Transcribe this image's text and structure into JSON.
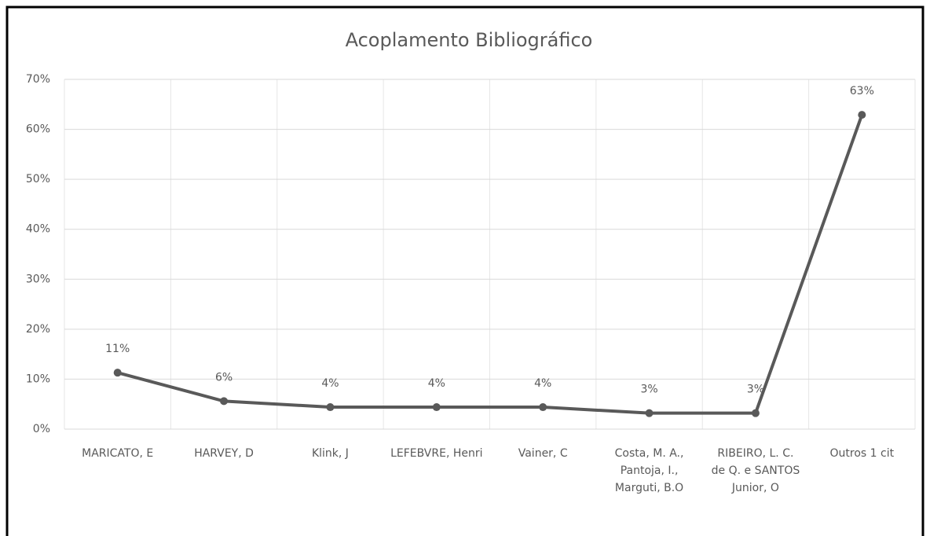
{
  "chart_data": {
    "type": "line",
    "title": "Acoplamento Bibliográfico",
    "categories": [
      "MARICATO, E",
      "HARVEY, D",
      "Klink, J",
      "LEFEBVRE, Henri",
      "Vainer, C",
      "Costa, M. A., Pantoja, I., Marguti, B.O",
      "RIBEIRO, L. C. de Q. e SANTOS Junior, O",
      "Outros 1 cit"
    ],
    "series": [
      {
        "name": "Acoplamento Bibliográfico",
        "color": "#595959",
        "values": [
          11.3,
          5.6,
          4.4,
          4.4,
          4.4,
          3.2,
          3.2,
          62.9
        ],
        "value_labels": [
          "11%",
          "6%",
          "4%",
          "4%",
          "4%",
          "3%",
          "3%",
          "63%"
        ]
      }
    ],
    "ylim": [
      0,
      70
    ],
    "yticks": [
      {
        "value": 0,
        "label": "0%"
      },
      {
        "value": 10,
        "label": "10%"
      },
      {
        "value": 20,
        "label": "20%"
      },
      {
        "value": 30,
        "label": "30%"
      },
      {
        "value": 40,
        "label": "40%"
      },
      {
        "value": 50,
        "label": "50%"
      },
      {
        "value": 60,
        "label": "60%"
      },
      {
        "value": 70,
        "label": "70%"
      }
    ],
    "grid": true
  }
}
